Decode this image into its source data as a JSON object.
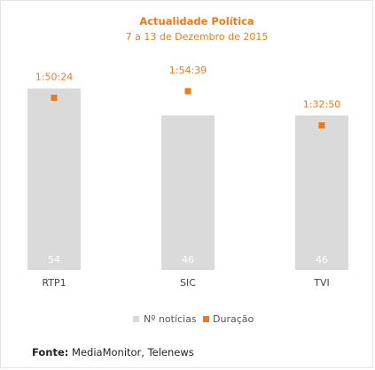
{
  "chart_data": {
    "type": "bar",
    "title": "Actualidade Política",
    "subtitle": "7 a 13 de Dezembro de 2015",
    "categories": [
      "RTP1",
      "SIC",
      "TVI"
    ],
    "series": [
      {
        "name": "Nº notícias",
        "type": "bar",
        "values": [
          54,
          46,
          46
        ],
        "color": "#dadada"
      },
      {
        "name": "Duração",
        "type": "scatter",
        "values": [
          "1:50:24",
          "1:54:39",
          "1:32:50"
        ],
        "values_seconds": [
          6624,
          6879,
          5570
        ],
        "color": "#f07818"
      }
    ],
    "legend_position": "bottom-center",
    "grid": false
  },
  "source": {
    "label": "Fonte:",
    "text": "MediaMonitor, Telenews"
  }
}
